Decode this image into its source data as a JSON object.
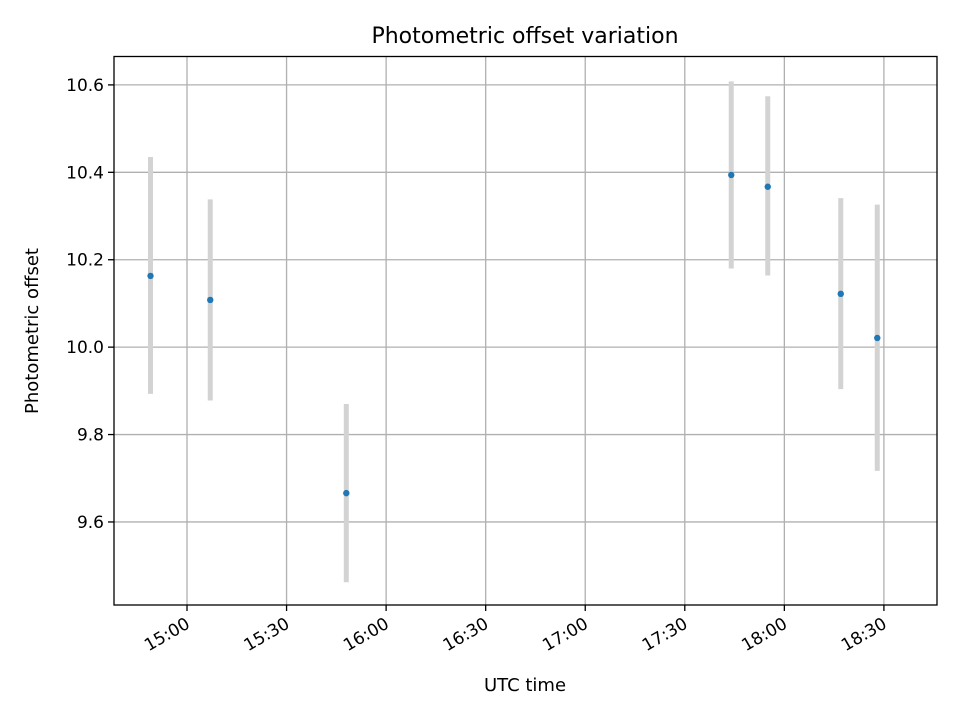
{
  "chart_data": {
    "type": "scatter",
    "title": "Photometric offset variation",
    "xlabel": "UTC time",
    "ylabel": "Photometric offset",
    "x_unit": "UTC time (HH:MM)",
    "xlim": [
      "14:38",
      "18:46"
    ],
    "ylim": [
      9.41,
      10.665
    ],
    "x_ticks": [
      "15:00",
      "15:30",
      "16:00",
      "16:30",
      "17:00",
      "17:30",
      "18:00",
      "18:30"
    ],
    "y_ticks": [
      9.6,
      9.8,
      10.0,
      10.2,
      10.4,
      10.6
    ],
    "y_tick_labels": [
      "9.6",
      "9.8",
      "10.0",
      "10.2",
      "10.4",
      "10.6"
    ],
    "grid": true,
    "point_color": "#1f77b4",
    "errorbar_color": "#d3d3d3",
    "points": [
      {
        "x": "14:49",
        "y": 10.163,
        "err_low": 9.893,
        "err_high": 10.435
      },
      {
        "x": "15:07",
        "y": 10.108,
        "err_low": 9.878,
        "err_high": 10.338
      },
      {
        "x": "15:48",
        "y": 9.666,
        "err_low": 9.462,
        "err_high": 9.87
      },
      {
        "x": "17:44",
        "y": 10.394,
        "err_low": 10.18,
        "err_high": 10.608
      },
      {
        "x": "17:55",
        "y": 10.367,
        "err_low": 10.164,
        "err_high": 10.574
      },
      {
        "x": "18:17",
        "y": 10.122,
        "err_low": 9.904,
        "err_high": 10.341
      },
      {
        "x": "18:28",
        "y": 10.021,
        "err_low": 9.717,
        "err_high": 10.326
      }
    ]
  }
}
